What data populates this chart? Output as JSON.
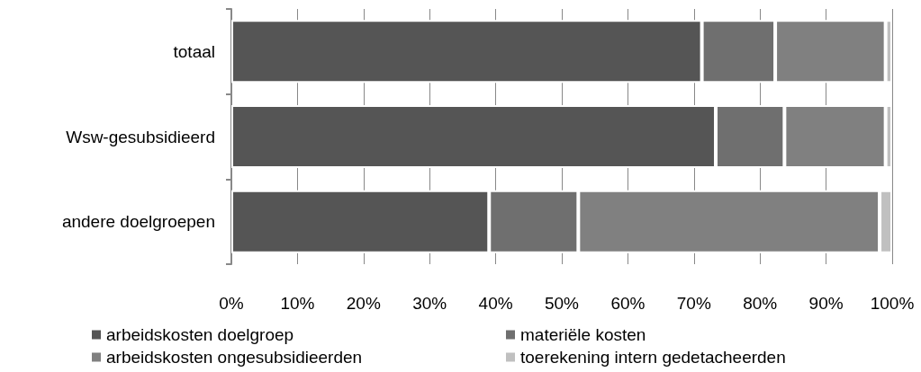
{
  "chart_data": {
    "type": "bar",
    "orientation": "horizontal",
    "stacked": true,
    "categories": [
      "totaal",
      "Wsw-gesubsidieerd",
      "andere doelgroepen"
    ],
    "series": [
      {
        "name": "arbeidskosten doelgroep",
        "color": "#555555",
        "values": [
          71.2,
          73.3,
          39.0
        ]
      },
      {
        "name": "materiële kosten",
        "color": "#6f6f6f",
        "values": [
          11.1,
          10.4,
          13.5
        ]
      },
      {
        "name": "arbeidskosten ongesubsidieerden",
        "color": "#808080",
        "values": [
          16.7,
          15.3,
          45.6
        ]
      },
      {
        "name": "toerekening intern gedetacheerden",
        "color": "#c0c0c0",
        "values": [
          1.0,
          1.0,
          1.9
        ]
      }
    ],
    "xlim": [
      0,
      100
    ],
    "xticks": [
      {
        "value": 0,
        "label": "0%"
      },
      {
        "value": 10,
        "label": "10%"
      },
      {
        "value": 20,
        "label": "20%"
      },
      {
        "value": 30,
        "label": "30%"
      },
      {
        "value": 40,
        "label": "40%"
      },
      {
        "value": 50,
        "label": "50%"
      },
      {
        "value": 60,
        "label": "60%"
      },
      {
        "value": 70,
        "label": "70%"
      },
      {
        "value": 80,
        "label": "80%"
      },
      {
        "value": 90,
        "label": "90%"
      },
      {
        "value": 100,
        "label": "100%"
      }
    ],
    "grid": "x",
    "legend": "bottom"
  }
}
